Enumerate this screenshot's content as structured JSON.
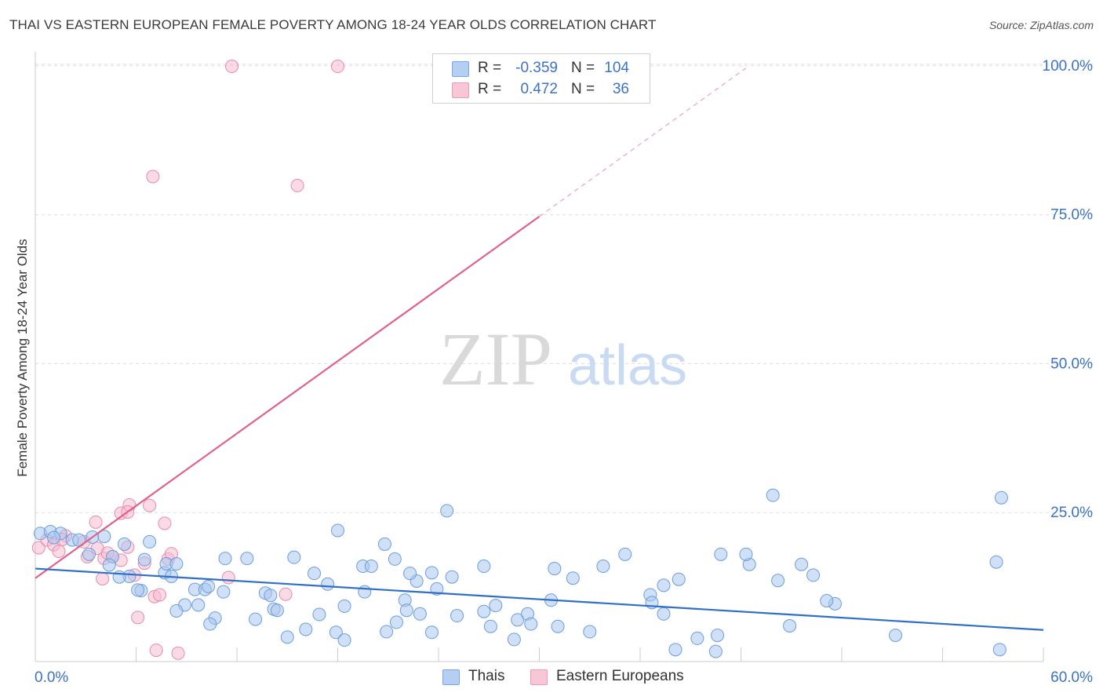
{
  "title": "THAI VS EASTERN EUROPEAN FEMALE POVERTY AMONG 18-24 YEAR OLDS CORRELATION CHART",
  "source": "Source: ZipAtlas.com",
  "watermark": {
    "zip": "ZIP",
    "atlas": "atlas"
  },
  "colors": {
    "thai_fill": "#a9c7ef",
    "thai_stroke": "#6b9de0",
    "thai_line": "#2f6fc9",
    "ee_fill": "#f6bccd",
    "ee_stroke": "#e98aa9",
    "ee_line": "#e0608a",
    "tick_label": "#3b72c8",
    "grid": "#dddddd"
  },
  "legend": {
    "rows": [
      {
        "r_label": "R =",
        "r_value": "-0.359",
        "n_label": "N =",
        "n_value": "104"
      },
      {
        "r_label": "R =",
        "r_value": "0.472",
        "n_label": "N =",
        "n_value": "36"
      }
    ]
  },
  "bottom_legend": {
    "thai": "Thais",
    "ee": "Eastern Europeans"
  },
  "chart_data": {
    "type": "scatter",
    "title": "THAI VS EASTERN EUROPEAN FEMALE POVERTY AMONG 18-24 YEAR OLDS CORRELATION CHART",
    "xlabel": "",
    "ylabel": "Female Poverty Among 18-24 Year Olds",
    "xlim": [
      0,
      60
    ],
    "ylim": [
      0,
      103
    ],
    "x_tick_labels": [
      "0.0%",
      "60.0%"
    ],
    "y_ticks": [
      25,
      50,
      75,
      100
    ],
    "y_tick_labels": [
      "25.0%",
      "50.0%",
      "75.0%",
      "100.0%"
    ],
    "grid": true,
    "series": [
      {
        "name": "Thais",
        "r": -0.359,
        "n": 104,
        "trend": {
          "x": [
            0,
            60
          ],
          "y": [
            15.6,
            5.3
          ]
        },
        "points": [
          [
            0.3,
            21.5
          ],
          [
            0.9,
            21.8
          ],
          [
            1.5,
            21.5
          ],
          [
            1.1,
            20.8
          ],
          [
            2.2,
            20.4
          ],
          [
            2.6,
            20.4
          ],
          [
            3.4,
            20.9
          ],
          [
            4.1,
            21.0
          ],
          [
            3.2,
            18.0
          ],
          [
            4.6,
            17.6
          ],
          [
            5.3,
            19.7
          ],
          [
            4.4,
            16.2
          ],
          [
            5.6,
            14.3
          ],
          [
            5.0,
            14.2
          ],
          [
            6.8,
            20.1
          ],
          [
            6.5,
            17.1
          ],
          [
            7.7,
            14.9
          ],
          [
            7.8,
            16.4
          ],
          [
            8.4,
            16.4
          ],
          [
            6.3,
            11.9
          ],
          [
            8.1,
            14.3
          ],
          [
            6.1,
            12.0
          ],
          [
            9.5,
            12.1
          ],
          [
            10.1,
            12.1
          ],
          [
            10.3,
            12.6
          ],
          [
            9.7,
            9.5
          ],
          [
            10.7,
            7.3
          ],
          [
            12.6,
            17.3
          ],
          [
            11.2,
            11.7
          ],
          [
            13.7,
            11.5
          ],
          [
            14.0,
            11.1
          ],
          [
            14.2,
            8.8
          ],
          [
            15.4,
            17.5
          ],
          [
            16.6,
            14.8
          ],
          [
            17.4,
            13.0
          ],
          [
            16.1,
            5.4
          ],
          [
            15.0,
            4.1
          ],
          [
            14.4,
            8.6
          ],
          [
            13.1,
            7.1
          ],
          [
            10.4,
            6.3
          ],
          [
            8.9,
            9.5
          ],
          [
            8.4,
            8.5
          ],
          [
            18.0,
            22.0
          ],
          [
            19.5,
            16.0
          ],
          [
            20.0,
            16.0
          ],
          [
            19.6,
            11.7
          ],
          [
            20.8,
            19.7
          ],
          [
            21.4,
            17.2
          ],
          [
            22.7,
            13.5
          ],
          [
            23.6,
            14.9
          ],
          [
            23.9,
            12.2
          ],
          [
            22.0,
            10.3
          ],
          [
            22.1,
            8.6
          ],
          [
            21.5,
            6.6
          ],
          [
            20.9,
            5.0
          ],
          [
            18.4,
            9.3
          ],
          [
            16.9,
            7.9
          ],
          [
            17.9,
            4.9
          ],
          [
            18.4,
            3.6
          ],
          [
            24.5,
            25.3
          ],
          [
            24.8,
            14.2
          ],
          [
            25.1,
            7.7
          ],
          [
            26.7,
            16.0
          ],
          [
            27.1,
            5.9
          ],
          [
            27.4,
            9.4
          ],
          [
            28.7,
            7.0
          ],
          [
            29.3,
            8.0
          ],
          [
            30.7,
            10.3
          ],
          [
            29.5,
            6.3
          ],
          [
            32.0,
            14.0
          ],
          [
            33.0,
            5.0
          ],
          [
            33.8,
            16.0
          ],
          [
            35.1,
            18.0
          ],
          [
            36.6,
            11.2
          ],
          [
            37.4,
            8.0
          ],
          [
            37.4,
            12.8
          ],
          [
            38.3,
            13.8
          ],
          [
            38.1,
            2.0
          ],
          [
            39.4,
            3.9
          ],
          [
            40.5,
            1.7
          ],
          [
            40.6,
            4.4
          ],
          [
            45.6,
            16.3
          ],
          [
            47.6,
            9.7
          ],
          [
            47.1,
            10.2
          ],
          [
            31.1,
            5.9
          ],
          [
            26.7,
            8.4
          ],
          [
            22.9,
            8.0
          ],
          [
            23.6,
            4.9
          ],
          [
            51.2,
            4.4
          ],
          [
            57.4,
            2.0
          ],
          [
            57.2,
            16.7
          ],
          [
            57.5,
            27.5
          ],
          [
            43.9,
            27.9
          ],
          [
            42.5,
            16.3
          ],
          [
            44.2,
            13.6
          ],
          [
            44.9,
            6.0
          ],
          [
            46.3,
            14.5
          ],
          [
            42.3,
            18.0
          ],
          [
            40.8,
            18.0
          ],
          [
            36.7,
            9.9
          ],
          [
            30.9,
            15.6
          ],
          [
            28.5,
            3.7
          ],
          [
            11.3,
            17.3
          ],
          [
            22.3,
            14.8
          ]
        ]
      },
      {
        "name": "Eastern Europeans",
        "r": 0.472,
        "n": 36,
        "trend": {
          "x": [
            0,
            30
          ],
          "y": [
            14.0,
            74.7
          ],
          "dashed_to": {
            "x": 42.3,
            "y": 99.6
          }
        },
        "points": [
          [
            0.2,
            19.1
          ],
          [
            0.7,
            20.4
          ],
          [
            1.1,
            19.6
          ],
          [
            1.4,
            18.5
          ],
          [
            1.8,
            21.1
          ],
          [
            1.6,
            20.5
          ],
          [
            2.9,
            20.1
          ],
          [
            3.1,
            17.6
          ],
          [
            3.6,
            23.4
          ],
          [
            3.7,
            19.0
          ],
          [
            4.1,
            17.3
          ],
          [
            4.6,
            17.6
          ],
          [
            4.0,
            13.9
          ],
          [
            4.3,
            18.2
          ],
          [
            5.1,
            24.9
          ],
          [
            5.5,
            19.2
          ],
          [
            5.1,
            17.0
          ],
          [
            5.6,
            26.3
          ],
          [
            5.5,
            25.1
          ],
          [
            6.8,
            26.2
          ],
          [
            6.5,
            16.5
          ],
          [
            7.1,
            10.9
          ],
          [
            7.7,
            23.2
          ],
          [
            7.9,
            17.2
          ],
          [
            8.1,
            18.1
          ],
          [
            5.9,
            14.5
          ],
          [
            6.1,
            7.4
          ],
          [
            7.4,
            11.2
          ],
          [
            7.2,
            1.9
          ],
          [
            8.5,
            1.4
          ],
          [
            11.5,
            14.1
          ],
          [
            14.9,
            11.3
          ],
          [
            11.7,
            99.9
          ],
          [
            18.0,
            99.9
          ],
          [
            7.0,
            81.4
          ],
          [
            15.6,
            79.9
          ]
        ]
      }
    ]
  }
}
